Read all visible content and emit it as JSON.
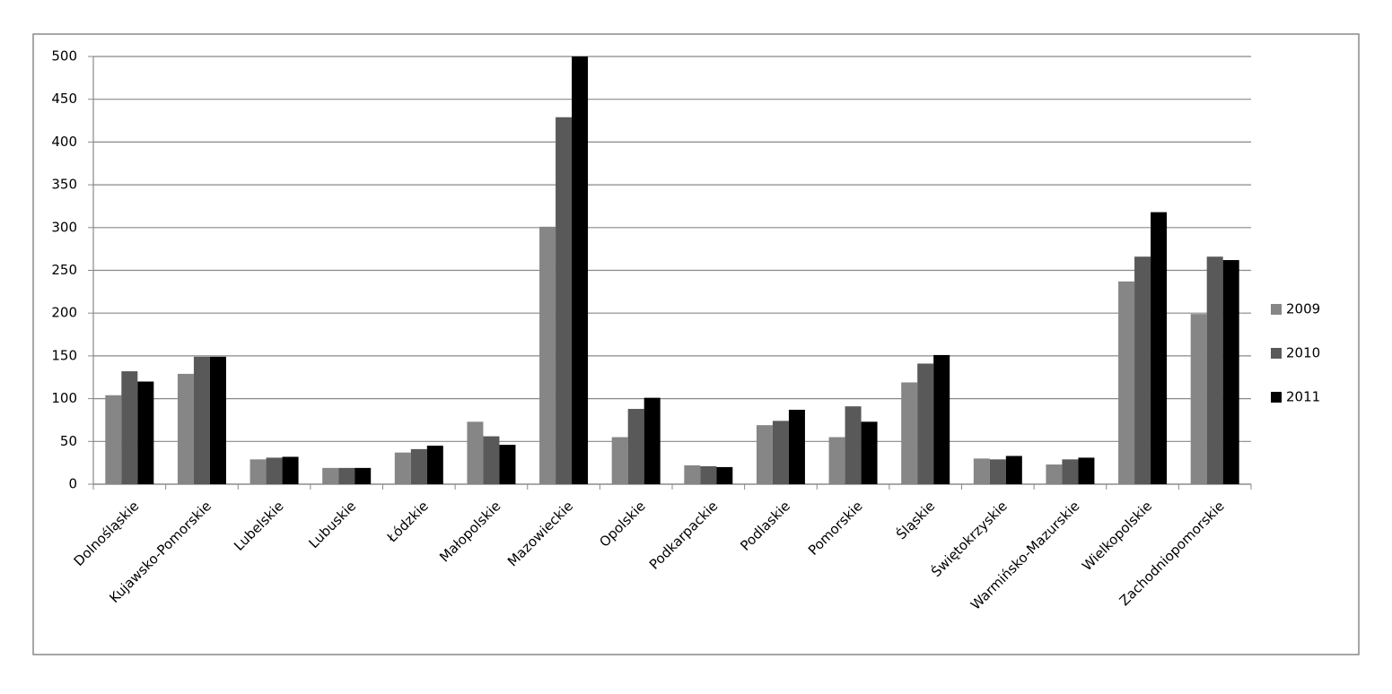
{
  "chart_data": {
    "type": "bar",
    "categories": [
      "Dolnośląskie",
      "Kujawsko-Pomorskie",
      "Lubelskie",
      "Lubuskie",
      "Łódzkie",
      "Małopolskie",
      "Mazowieckie",
      "Opolskie",
      "Podkarpackie",
      "Podlaskie",
      "Pomorskie",
      "Śląskie",
      "Świętokrzyskie",
      "Warmińsko-Mazurskie",
      "Wielkopolskie",
      "Zachodniopomorskie"
    ],
    "series": [
      {
        "name": "2009",
        "color": "#868686",
        "values": [
          104,
          129,
          29,
          19,
          37,
          73,
          301,
          55,
          22,
          69,
          55,
          119,
          30,
          23,
          237,
          199
        ]
      },
      {
        "name": "2010",
        "color": "#595959",
        "values": [
          132,
          149,
          31,
          19,
          41,
          56,
          429,
          88,
          21,
          74,
          91,
          141,
          29,
          29,
          266,
          266
        ]
      },
      {
        "name": "2011",
        "color": "#000000",
        "values": [
          120,
          149,
          32,
          19,
          45,
          46,
          500,
          101,
          20,
          87,
          73,
          151,
          33,
          31,
          318,
          262
        ]
      }
    ],
    "ylim": [
      0,
      500
    ],
    "yticks": [
      0,
      50,
      100,
      150,
      200,
      250,
      300,
      350,
      400,
      450,
      500
    ],
    "grid": true,
    "legend": "right"
  }
}
